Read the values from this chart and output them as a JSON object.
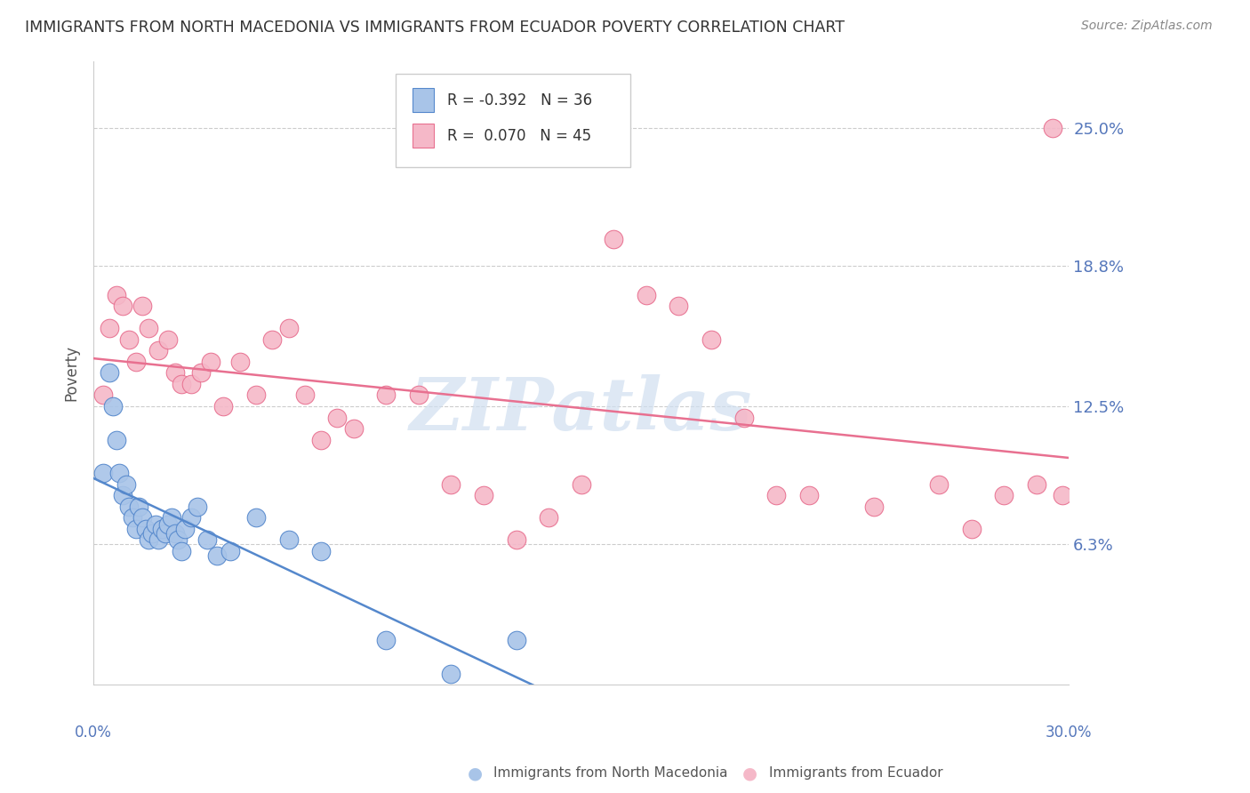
{
  "title": "IMMIGRANTS FROM NORTH MACEDONIA VS IMMIGRANTS FROM ECUADOR POVERTY CORRELATION CHART",
  "source": "Source: ZipAtlas.com",
  "ylabel": "Poverty",
  "ytick_labels": [
    "25.0%",
    "18.8%",
    "12.5%",
    "6.3%"
  ],
  "ytick_values": [
    0.25,
    0.188,
    0.125,
    0.063
  ],
  "xlim": [
    0.0,
    0.3
  ],
  "ylim": [
    0.0,
    0.28
  ],
  "legend": {
    "blue_R": "-0.392",
    "blue_N": "36",
    "pink_R": "0.070",
    "pink_N": "45"
  },
  "blue_scatter_color": "#A8C4E8",
  "pink_scatter_color": "#F5B8C8",
  "blue_line_color": "#5588CC",
  "pink_line_color": "#E87090",
  "watermark_color": "#D0DFF0",
  "north_macedonia_x": [
    0.003,
    0.005,
    0.006,
    0.007,
    0.008,
    0.009,
    0.01,
    0.011,
    0.012,
    0.013,
    0.014,
    0.015,
    0.016,
    0.017,
    0.018,
    0.019,
    0.02,
    0.021,
    0.022,
    0.023,
    0.024,
    0.025,
    0.026,
    0.027,
    0.028,
    0.03,
    0.032,
    0.035,
    0.038,
    0.042,
    0.05,
    0.06,
    0.07,
    0.09,
    0.11,
    0.13
  ],
  "north_macedonia_y": [
    0.095,
    0.14,
    0.125,
    0.11,
    0.095,
    0.085,
    0.09,
    0.08,
    0.075,
    0.07,
    0.08,
    0.075,
    0.07,
    0.065,
    0.068,
    0.072,
    0.065,
    0.07,
    0.068,
    0.072,
    0.075,
    0.068,
    0.065,
    0.06,
    0.07,
    0.075,
    0.08,
    0.065,
    0.058,
    0.06,
    0.075,
    0.065,
    0.06,
    0.02,
    0.005,
    0.02
  ],
  "ecuador_x": [
    0.003,
    0.005,
    0.007,
    0.009,
    0.011,
    0.013,
    0.015,
    0.017,
    0.02,
    0.023,
    0.025,
    0.027,
    0.03,
    0.033,
    0.036,
    0.04,
    0.045,
    0.05,
    0.055,
    0.06,
    0.065,
    0.07,
    0.075,
    0.08,
    0.09,
    0.1,
    0.11,
    0.12,
    0.13,
    0.14,
    0.15,
    0.16,
    0.17,
    0.18,
    0.19,
    0.2,
    0.21,
    0.22,
    0.24,
    0.26,
    0.27,
    0.28,
    0.29,
    0.295,
    0.298
  ],
  "ecuador_y": [
    0.13,
    0.16,
    0.175,
    0.17,
    0.155,
    0.145,
    0.17,
    0.16,
    0.15,
    0.155,
    0.14,
    0.135,
    0.135,
    0.14,
    0.145,
    0.125,
    0.145,
    0.13,
    0.155,
    0.16,
    0.13,
    0.11,
    0.12,
    0.115,
    0.13,
    0.13,
    0.09,
    0.085,
    0.065,
    0.075,
    0.09,
    0.2,
    0.175,
    0.17,
    0.155,
    0.12,
    0.085,
    0.085,
    0.08,
    0.09,
    0.07,
    0.085,
    0.09,
    0.25,
    0.085
  ]
}
